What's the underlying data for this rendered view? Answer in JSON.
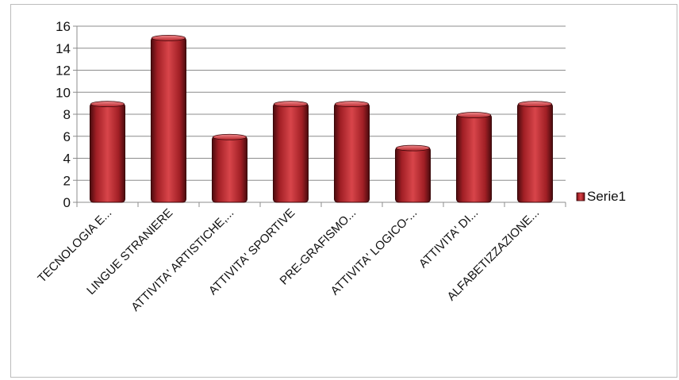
{
  "chart_data": {
    "type": "bar",
    "categories": [
      "TECNOLOGIA E...",
      "LINGUE STRANIERE",
      "ATTIVITA' ARTISTICHE,...",
      "ATTIVITA' SPORTIVE",
      "PRE-GRAFISMO...",
      "ATTIVITA' LOGICO-...",
      "ATTIVITA' DI...",
      "ALFABETIZZAZIONE..."
    ],
    "series": [
      {
        "name": "Serie1",
        "values": [
          9,
          15,
          6,
          9,
          9,
          5,
          8,
          9
        ]
      }
    ],
    "ylim": [
      0,
      16
    ],
    "yticks": [
      0,
      2,
      4,
      6,
      8,
      10,
      12,
      14,
      16
    ],
    "grid": true,
    "legend": "right",
    "colors": {
      "bar": "#b8262c",
      "bar_dark": "#5a0f12",
      "grid": "#8c8c8c",
      "axis": "#8c8c8c"
    }
  }
}
